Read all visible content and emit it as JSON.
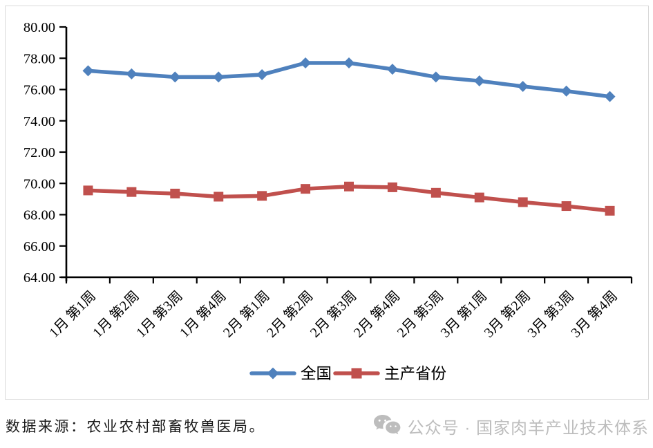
{
  "chart_data": {
    "type": "line",
    "title": "",
    "xlabel": "",
    "ylabel": "",
    "categories": [
      "1月 第1周",
      "1月 第2周",
      "1月 第3周",
      "1月 第4周",
      "2月 第1周",
      "2月 第2周",
      "2月 第3周",
      "2月 第4周",
      "2月 第5周",
      "3月 第1周",
      "3月 第2周",
      "3月 第3周",
      "3月 第4周"
    ],
    "series": [
      {
        "name": "全国",
        "marker": "diamond",
        "color": "#4F81BD",
        "values": [
          77.2,
          77.0,
          76.8,
          76.8,
          76.95,
          77.7,
          77.7,
          77.3,
          76.8,
          76.55,
          76.2,
          75.9,
          75.55
        ]
      },
      {
        "name": "主产省份",
        "marker": "square",
        "color": "#C0504D",
        "values": [
          69.55,
          69.45,
          69.35,
          69.15,
          69.2,
          69.65,
          69.8,
          69.75,
          69.4,
          69.1,
          68.8,
          68.55,
          68.25
        ]
      }
    ],
    "ylim": [
      64,
      80
    ],
    "ytick_step": 2,
    "yticks": [
      "80.00",
      "78.00",
      "76.00",
      "74.00",
      "72.00",
      "70.00",
      "68.00",
      "66.00",
      "64.00"
    ],
    "grid": false,
    "legend_position": "bottom",
    "axis_color": "#000000",
    "frame_color": "#d9d9d9"
  },
  "footer": {
    "source_text": "数据来源：农业农村部畜牧兽医局。",
    "watermark": {
      "icon": "wechat-icon",
      "text": "公众号 · 国家肉羊产业技术体系",
      "color": "#bdbdbd"
    }
  }
}
